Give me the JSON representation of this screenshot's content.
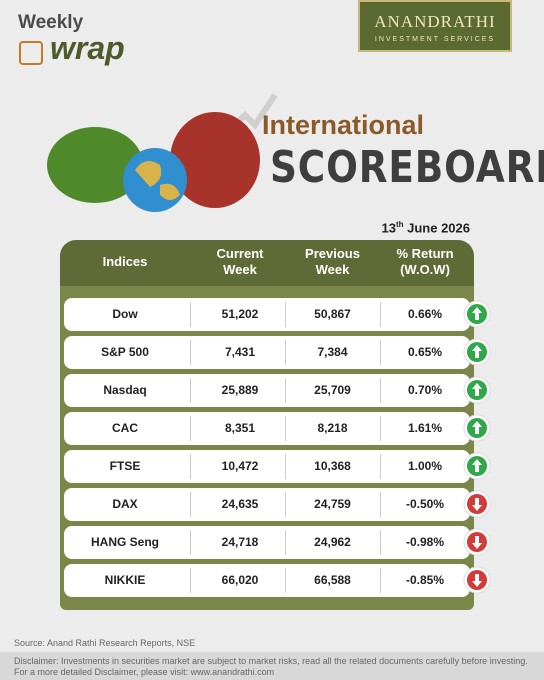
{
  "logo": {
    "line1": "Weekly",
    "line2": "wrap"
  },
  "brand": {
    "name": "ANANDRATHI",
    "tagline": "INVESTMENT SERVICES"
  },
  "title": {
    "line1": "International",
    "line2": "SCOREBOARD"
  },
  "date": {
    "day": "13",
    "suffix": "th",
    "rest": "June 2026"
  },
  "table": {
    "headers": [
      [
        "Indices"
      ],
      [
        "Current",
        "Week"
      ],
      [
        "Previous",
        "Week"
      ],
      [
        "% Return",
        "(W.O.W)"
      ]
    ],
    "rows": [
      [
        "Dow",
        "51,202",
        "50,867",
        "0.66%"
      ],
      [
        "S&P 500",
        "7,431",
        "7,384",
        "0.65%"
      ],
      [
        "Nasdaq",
        "25,889",
        "25,709",
        "0.70%"
      ],
      [
        "CAC",
        "8,351",
        "8,218",
        "1.61%"
      ],
      [
        "FTSE",
        "10,472",
        "10,368",
        "1.00%"
      ],
      [
        "DAX",
        "24,635",
        "24,759",
        "-0.50%"
      ],
      [
        "HANG Seng",
        "24,718",
        "24,962",
        "-0.98%"
      ],
      [
        "NIKKIE",
        "66,020",
        "66,588",
        "-0.85%"
      ]
    ]
  },
  "source": "Source: Anand Rathi Research Reports, NSE",
  "disclaimer": [
    "Disclaimer: Investments in securities market are subject to market risks, read all the related documents carefully before investing.",
    "For a more detailed Disclaimer, please visit: www.anandrathi.com"
  ]
}
